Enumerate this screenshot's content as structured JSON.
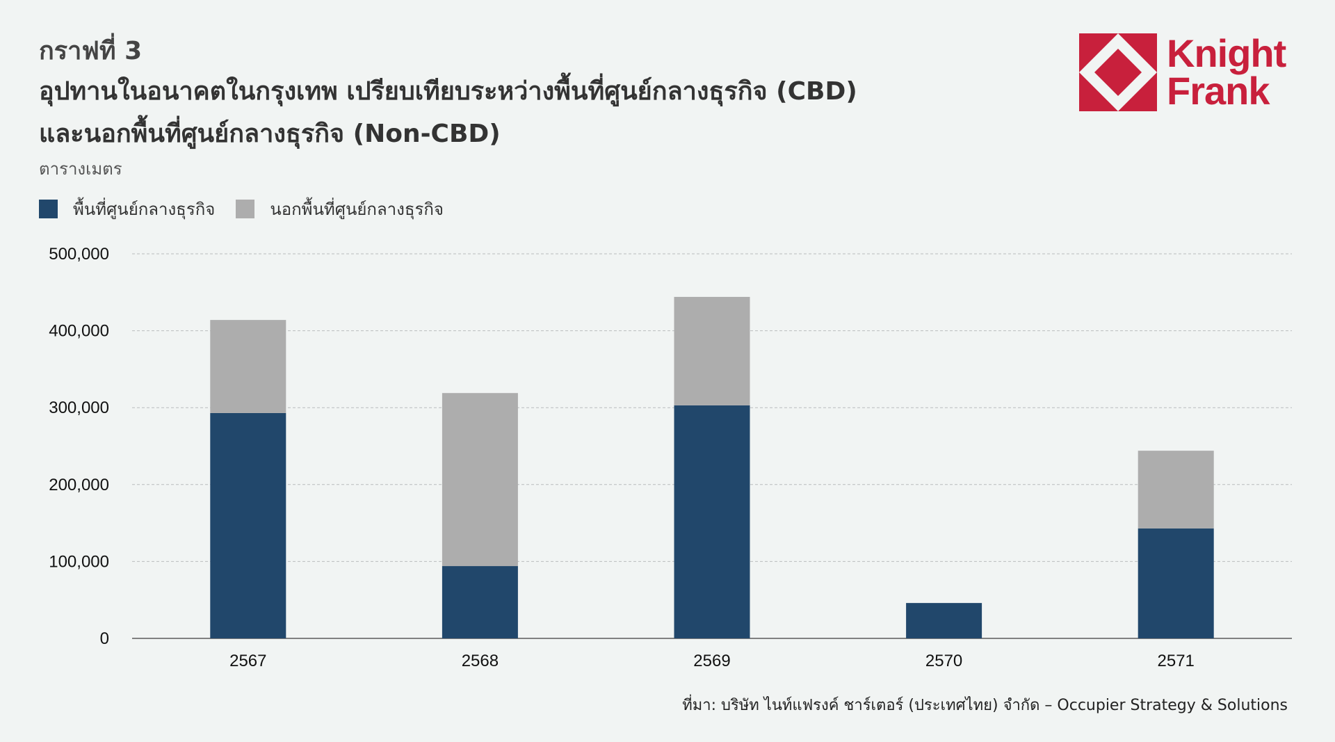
{
  "header": {
    "figure_number": "กราฟที่ 3",
    "title_line1": "อุปทานในอนาคตในกรุงเทพ เปรียบเทียบระหว่างพื้นที่ศูนย์กลางธุรกิจ (CBD)",
    "title_line2": "และนอกพื้นที่ศูนย์กลางธุรกิจ (Non-CBD)",
    "unit": "ตารางเมตร"
  },
  "logo": {
    "line1": "Knight",
    "line2": "Frank",
    "color": "#c8203c"
  },
  "legend": [
    {
      "label": "พื้นที่ศูนย์กลางธุรกิจ",
      "color": "#21476b"
    },
    {
      "label": "นอกพื้นที่ศูนย์กลางธุรกิจ",
      "color": "#adadad"
    }
  ],
  "source": "ที่มา: บริษัท ไนท์แฟรงค์ ชาร์เตอร์ (ประเทศไทย) จำกัด – Occupier Strategy & Solutions",
  "chart_data": {
    "type": "bar",
    "stacked": true,
    "categories": [
      "2567",
      "2568",
      "2569",
      "2570",
      "2571"
    ],
    "series": [
      {
        "name": "พื้นที่ศูนย์กลางธุรกิจ",
        "values": [
          293000,
          94000,
          303000,
          46000,
          143000
        ],
        "color": "#21476b"
      },
      {
        "name": "นอกพื้นที่ศูนย์กลางธุรกิจ",
        "values": [
          121000,
          225000,
          141000,
          0,
          101000
        ],
        "color": "#adadad"
      }
    ],
    "ylim": [
      0,
      500000
    ],
    "yticks": [
      "0",
      "100,000",
      "200,000",
      "300,000",
      "400,000",
      "500,000"
    ],
    "ytick_values": [
      0,
      100000,
      200000,
      300000,
      400000,
      500000
    ],
    "grid": true,
    "legend_position": "top-left"
  }
}
